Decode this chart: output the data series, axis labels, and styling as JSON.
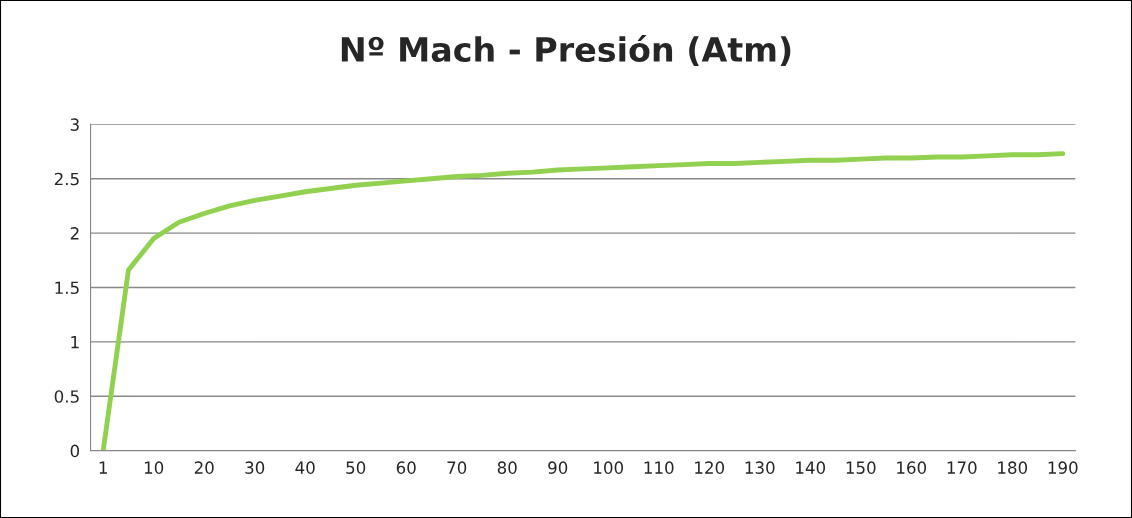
{
  "chart_data": {
    "type": "line",
    "title": "Nº Mach - Presión (Atm)",
    "categories": [
      "1",
      null,
      "10",
      null,
      "20",
      null,
      "30",
      null,
      "40",
      null,
      "50",
      null,
      "60",
      null,
      "70",
      null,
      "80",
      null,
      "90",
      null,
      "100",
      null,
      "110",
      null,
      "120",
      null,
      "130",
      null,
      "140",
      null,
      "150",
      null,
      "160",
      null,
      "170",
      null,
      "180",
      null,
      "190"
    ],
    "series": [
      {
        "color": "#92d050",
        "values": [
          0,
          1.66,
          1.95,
          2.1,
          2.18,
          2.25,
          2.3,
          2.34,
          2.38,
          2.41,
          2.44,
          2.46,
          2.48,
          2.5,
          2.52,
          2.53,
          2.55,
          2.56,
          2.58,
          2.59,
          2.6,
          2.61,
          2.62,
          2.63,
          2.64,
          2.64,
          2.65,
          2.66,
          2.67,
          2.67,
          2.68,
          2.69,
          2.69,
          2.7,
          2.7,
          2.71,
          2.72,
          2.72,
          2.73
        ]
      }
    ],
    "ylim": [
      0,
      3
    ],
    "yticks": [
      0,
      0.5,
      1,
      1.5,
      2,
      2.5,
      3
    ],
    "grid": "y",
    "marker": "none",
    "line_style": "solid"
  }
}
